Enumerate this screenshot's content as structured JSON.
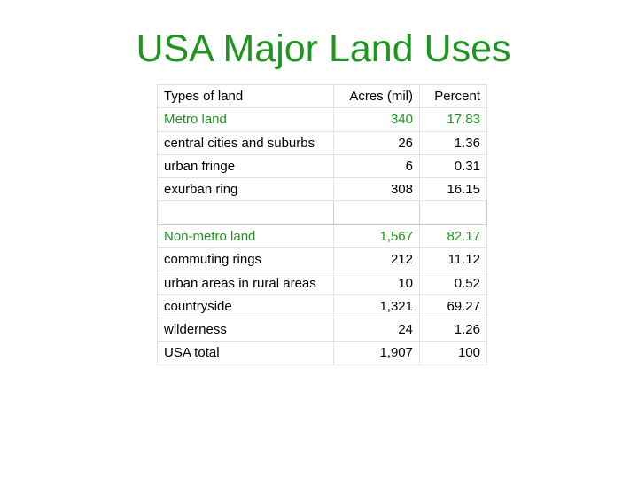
{
  "title": "USA Major Land Uses",
  "table": {
    "headers": [
      "Types of land",
      "Acres (mil)",
      "Percent"
    ],
    "rows": [
      {
        "label": "Metro land",
        "acres": "340",
        "percent": "17.83",
        "style": "green-group"
      },
      {
        "label": "central cities and suburbs",
        "acres": "26",
        "percent": "1.36",
        "style": "normal"
      },
      {
        "label": "urban fringe",
        "acres": "6",
        "percent": "0.31",
        "style": "normal"
      },
      {
        "label": "exurban ring",
        "acres": "308",
        "percent": "16.15",
        "style": "normal"
      },
      {
        "label": "",
        "acres": "",
        "percent": "",
        "style": "spacer"
      },
      {
        "label": "Non-metro land",
        "acres": "1,567",
        "percent": "82.17",
        "style": "green-group"
      },
      {
        "label": "commuting rings",
        "acres": "212",
        "percent": "11.12",
        "style": "normal"
      },
      {
        "label": "urban areas in rural areas",
        "acres": "10",
        "percent": "0.52",
        "style": "normal"
      },
      {
        "label": "countryside",
        "acres": "1,321",
        "percent": "69.27",
        "style": "normal"
      },
      {
        "label": "wilderness",
        "acres": "24",
        "percent": "1.26",
        "style": "normal"
      },
      {
        "label": "USA total",
        "acres": "1,907",
        "percent": "100",
        "style": "total"
      }
    ]
  },
  "colors": {
    "title": "#1f9420",
    "group_row": "#1f9420",
    "text": "#000000"
  }
}
